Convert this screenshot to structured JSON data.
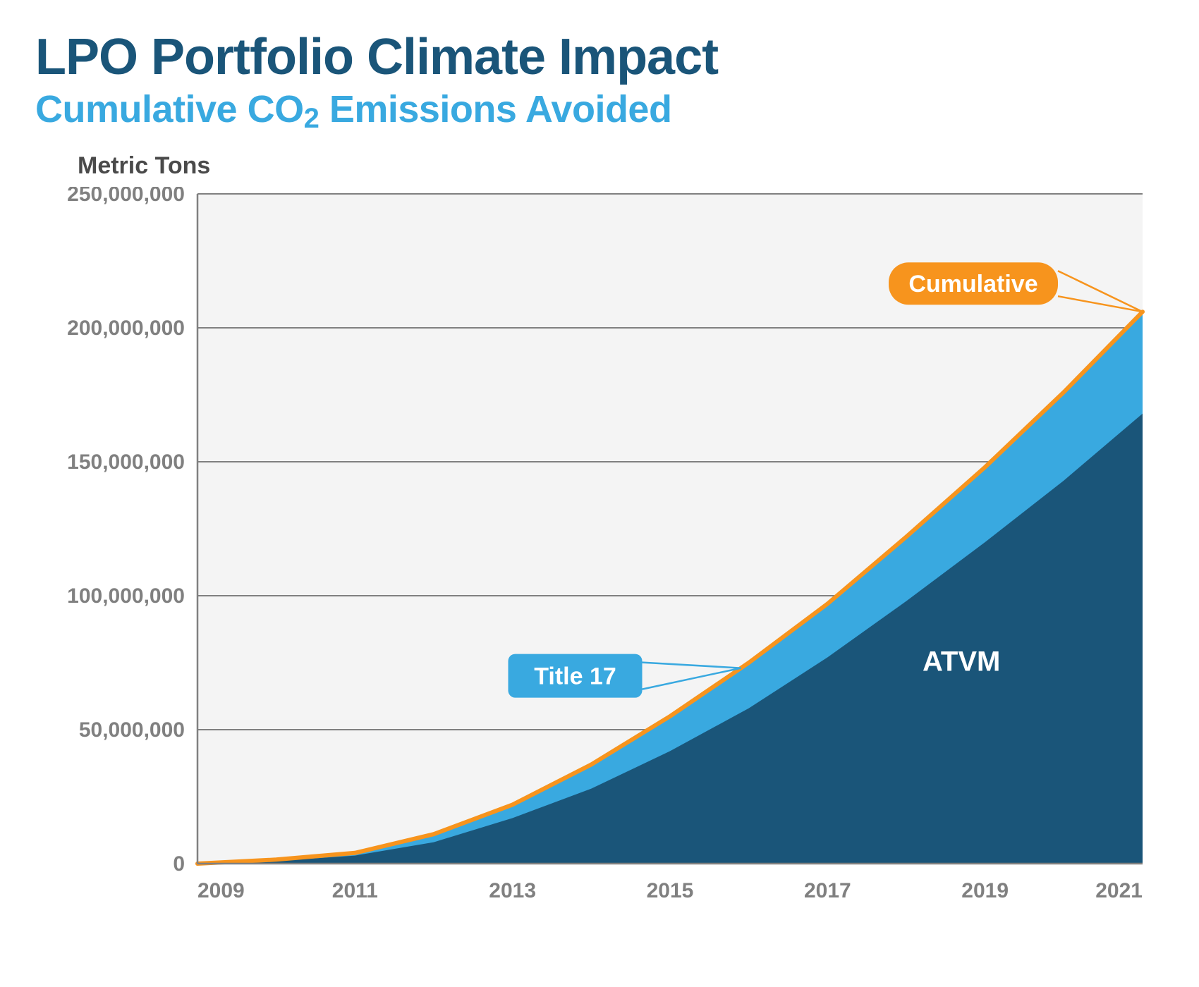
{
  "title": "LPO Portfolio Climate Impact",
  "subtitle_prefix": "Cumulative CO",
  "subtitle_sub": "2",
  "subtitle_suffix": " Emissions Avoided",
  "ylabel": "Metric Tons",
  "chart": {
    "type": "area",
    "background_color": "#f4f4f4",
    "grid_color": "#808080",
    "axis_color": "#808080",
    "x": {
      "years": [
        2009,
        2010,
        2011,
        2012,
        2013,
        2014,
        2015,
        2016,
        2017,
        2018,
        2019,
        2020,
        2021
      ],
      "ticks": [
        2009,
        2011,
        2013,
        2015,
        2017,
        2019,
        2021
      ],
      "min": 2009,
      "max": 2021
    },
    "y": {
      "min": 0,
      "max": 250000000,
      "ticks": [
        0,
        50000000,
        100000000,
        150000000,
        200000000,
        250000000
      ],
      "tick_labels": [
        "0",
        "50,000,000",
        "100,000,000",
        "150,000,000",
        "200,000,000",
        "250,000,000"
      ]
    },
    "series": {
      "atvm": {
        "label": "ATVM",
        "color": "#1a5579",
        "values": [
          0,
          1000000,
          3000000,
          8000000,
          17000000,
          28000000,
          42000000,
          58000000,
          77000000,
          98000000,
          120000000,
          143000000,
          168000000
        ]
      },
      "title17": {
        "label": "Title 17",
        "color": "#39a9e0",
        "values": [
          0,
          1500000,
          4000000,
          11000000,
          22000000,
          37000000,
          55000000,
          75000000,
          97000000,
          122000000,
          148000000,
          176000000,
          206000000
        ]
      },
      "cumulative": {
        "label": "Cumulative",
        "color": "#f7941d",
        "line_width": 6,
        "values": [
          0,
          1500000,
          4000000,
          11000000,
          22000000,
          37000000,
          55000000,
          75000000,
          97000000,
          122000000,
          148000000,
          176000000,
          206000000
        ]
      }
    },
    "callouts": {
      "cumulative": {
        "text": "Cumulative",
        "bg": "#f7941d"
      },
      "title17": {
        "text": "Title 17",
        "bg": "#39a9e0"
      },
      "atvm": {
        "text": "ATVM"
      }
    },
    "fonts": {
      "title_size": 72,
      "subtitle_size": 54,
      "ylabel_size": 34,
      "tick_size": 30,
      "callout_size": 34,
      "atvm_label_size": 40
    }
  }
}
